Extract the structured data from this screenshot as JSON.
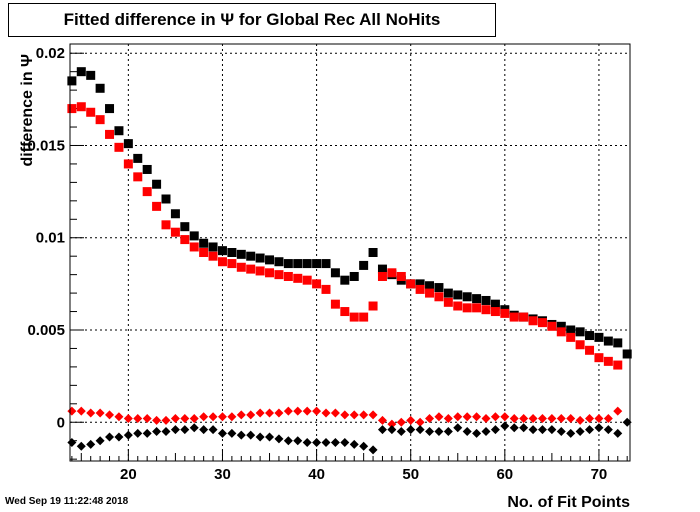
{
  "chart_data": {
    "type": "scatter",
    "title": "Fitted difference in  Ψ  for Global Rec All NoHits",
    "xlabel": "No. of Fit Points",
    "ylabel": "difference in  Ψ",
    "xlim": [
      13.8,
      73.3
    ],
    "ylim": [
      -0.0021,
      0.0205
    ],
    "x_ticks": [
      20,
      30,
      40,
      50,
      60,
      70
    ],
    "x_tick_labels": [
      "20",
      "30",
      "40",
      "50",
      "60",
      "70"
    ],
    "y_ticks": [
      0,
      0.005,
      0.01,
      0.015,
      0.02
    ],
    "y_tick_labels": [
      "0",
      "0.005",
      "0.01",
      "0.015",
      "0.02"
    ],
    "grid": true,
    "legend": "none",
    "series": [
      {
        "color": "#000000",
        "marker": "square",
        "x": [
          14,
          15,
          16,
          17,
          18,
          19,
          20,
          21,
          22,
          23,
          24,
          25,
          26,
          27,
          28,
          29,
          30,
          31,
          32,
          33,
          34,
          35,
          36,
          37,
          38,
          39,
          40,
          41,
          42,
          43,
          44,
          45,
          46,
          47,
          48,
          49,
          50,
          51,
          52,
          53,
          54,
          55,
          56,
          57,
          58,
          59,
          60,
          61,
          62,
          63,
          64,
          65,
          66,
          67,
          68,
          69,
          70,
          71,
          72,
          73
        ],
        "y": [
          0.0185,
          0.019,
          0.0188,
          0.0181,
          0.017,
          0.0158,
          0.0151,
          0.0143,
          0.0137,
          0.0129,
          0.0121,
          0.0113,
          0.0106,
          0.0101,
          0.0097,
          0.0095,
          0.0093,
          0.0092,
          0.0091,
          0.009,
          0.0089,
          0.0088,
          0.0087,
          0.0086,
          0.0086,
          0.0086,
          0.0086,
          0.0086,
          0.0081,
          0.0077,
          0.0079,
          0.0085,
          0.0092,
          0.0083,
          0.008,
          0.0077,
          0.0075,
          0.0075,
          0.0074,
          0.0073,
          0.007,
          0.0069,
          0.0068,
          0.0067,
          0.0066,
          0.0064,
          0.0061,
          0.0058,
          0.0057,
          0.0056,
          0.0055,
          0.0053,
          0.0052,
          0.005,
          0.0049,
          0.0047,
          0.0046,
          0.0044,
          0.0043,
          0.0037
        ]
      },
      {
        "color": "#ff0000",
        "marker": "square",
        "x": [
          14,
          15,
          16,
          17,
          18,
          19,
          20,
          21,
          22,
          23,
          24,
          25,
          26,
          27,
          28,
          29,
          30,
          31,
          32,
          33,
          34,
          35,
          36,
          37,
          38,
          39,
          40,
          41,
          42,
          43,
          44,
          45,
          46,
          47,
          48,
          49,
          50,
          51,
          52,
          53,
          54,
          55,
          56,
          57,
          58,
          59,
          60,
          61,
          62,
          63,
          64,
          65,
          66,
          67,
          68,
          69,
          70,
          71,
          72
        ],
        "y": [
          0.017,
          0.0171,
          0.0168,
          0.0164,
          0.0156,
          0.0149,
          0.014,
          0.0133,
          0.0125,
          0.0117,
          0.0107,
          0.0103,
          0.0099,
          0.0095,
          0.0092,
          0.009,
          0.0087,
          0.0086,
          0.0084,
          0.0083,
          0.0082,
          0.0081,
          0.008,
          0.0079,
          0.0078,
          0.0077,
          0.0075,
          0.0072,
          0.0064,
          0.006,
          0.0057,
          0.0057,
          0.0063,
          0.0079,
          0.0081,
          0.0079,
          0.0075,
          0.0072,
          0.007,
          0.0068,
          0.0065,
          0.0063,
          0.0062,
          0.0062,
          0.0061,
          0.006,
          0.0059,
          0.0057,
          0.0057,
          0.0055,
          0.0054,
          0.0052,
          0.0049,
          0.0046,
          0.0042,
          0.0039,
          0.0035,
          0.0033,
          0.0031
        ]
      },
      {
        "color": "#ff0000",
        "marker": "diamond",
        "x": [
          14,
          15,
          16,
          17,
          18,
          19,
          20,
          21,
          22,
          23,
          24,
          25,
          26,
          27,
          28,
          29,
          30,
          31,
          32,
          33,
          34,
          35,
          36,
          37,
          38,
          39,
          40,
          41,
          42,
          43,
          44,
          45,
          46,
          47,
          48,
          49,
          50,
          51,
          52,
          53,
          54,
          55,
          56,
          57,
          58,
          59,
          60,
          61,
          62,
          63,
          64,
          65,
          66,
          67,
          68,
          69,
          70,
          71,
          72
        ],
        "y": [
          0.0006,
          0.0006,
          0.0005,
          0.0005,
          0.0004,
          0.0003,
          0.0002,
          0.0002,
          0.0002,
          0.0001,
          0.0001,
          0.0002,
          0.0002,
          0.0002,
          0.0003,
          0.0003,
          0.0003,
          0.0003,
          0.0004,
          0.0004,
          0.0005,
          0.0005,
          0.0005,
          0.0006,
          0.0006,
          0.0006,
          0.0006,
          0.0005,
          0.0005,
          0.0004,
          0.0004,
          0.0004,
          0.0004,
          0.0001,
          -0.0001,
          0.0,
          0.0001,
          0.0,
          0.0002,
          0.0003,
          0.0002,
          0.0003,
          0.0003,
          0.0003,
          0.0002,
          0.0003,
          0.0003,
          0.0002,
          0.0002,
          0.0002,
          0.0002,
          0.0002,
          0.0002,
          0.0002,
          0.0001,
          0.0002,
          0.0002,
          0.0002,
          0.0006
        ]
      },
      {
        "color": "#000000",
        "marker": "diamond",
        "x": [
          14,
          15,
          16,
          17,
          18,
          19,
          20,
          21,
          22,
          23,
          24,
          25,
          26,
          27,
          28,
          29,
          30,
          31,
          32,
          33,
          34,
          35,
          36,
          37,
          38,
          39,
          40,
          41,
          42,
          43,
          44,
          45,
          46,
          47,
          48,
          49,
          50,
          51,
          52,
          53,
          54,
          55,
          56,
          57,
          58,
          59,
          60,
          61,
          62,
          63,
          64,
          65,
          66,
          67,
          68,
          69,
          70,
          71,
          72,
          73
        ],
        "y": [
          -0.0011,
          -0.0013,
          -0.0012,
          -0.001,
          -0.0008,
          -0.0008,
          -0.0007,
          -0.0006,
          -0.0006,
          -0.0005,
          -0.0005,
          -0.0004,
          -0.0004,
          -0.0003,
          -0.0004,
          -0.0004,
          -0.0006,
          -0.0006,
          -0.0007,
          -0.0007,
          -0.0008,
          -0.0008,
          -0.0009,
          -0.001,
          -0.001,
          -0.0011,
          -0.0011,
          -0.0011,
          -0.0011,
          -0.0011,
          -0.0012,
          -0.0013,
          -0.0015,
          -0.0004,
          -0.0004,
          -0.0005,
          -0.0004,
          -0.0004,
          -0.0005,
          -0.0005,
          -0.0005,
          -0.0003,
          -0.0005,
          -0.0006,
          -0.0005,
          -0.0004,
          -0.0002,
          -0.0003,
          -0.0003,
          -0.0004,
          -0.0004,
          -0.0004,
          -0.0005,
          -0.0006,
          -0.0005,
          -0.0004,
          -0.0003,
          -0.0004,
          -0.0006,
          0.0
        ]
      }
    ]
  },
  "footer": {
    "timestamp": "Wed Sep 19 11:22:48 2018"
  }
}
